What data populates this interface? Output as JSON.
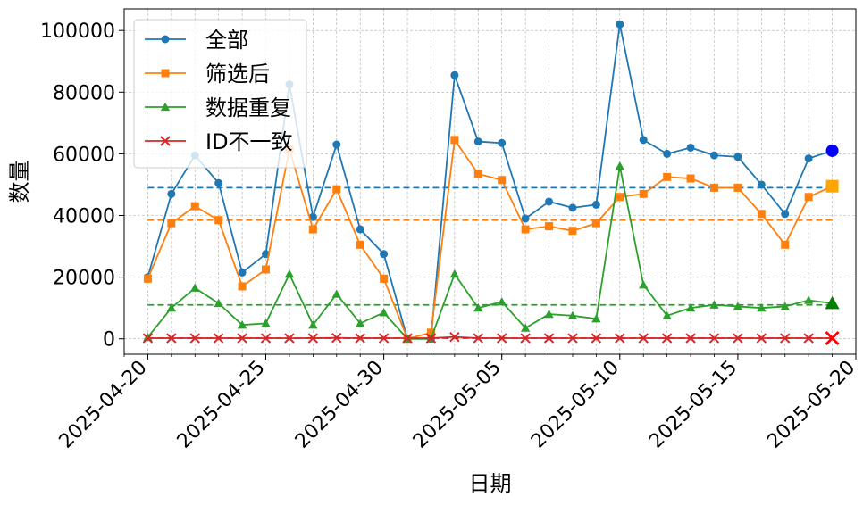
{
  "chart_data": {
    "type": "line",
    "title": "",
    "xlabel": "日期",
    "ylabel": "数量",
    "x_start": "2025-04-20",
    "x_end": "2025-05-19",
    "xlim": [
      "2025-04-19",
      "2025-05-20"
    ],
    "ylim": [
      -5000,
      107000
    ],
    "x_ticks": [
      "2025-04-20",
      "2025-04-25",
      "2025-04-30",
      "2025-05-05",
      "2025-05-10",
      "2025-05-15",
      "2025-05-20"
    ],
    "y_ticks": [
      0,
      20000,
      40000,
      60000,
      80000,
      100000
    ],
    "grid": true,
    "legend": "top-left",
    "series": [
      {
        "name": "全部",
        "color": "#1f77b4",
        "marker": "circle",
        "mean": 49000,
        "values": [
          20000,
          47000,
          59500,
          50500,
          21500,
          27500,
          82500,
          39500,
          63000,
          35500,
          27500,
          0,
          0,
          85500,
          64000,
          63500,
          39000,
          44500,
          42500,
          43500,
          102000,
          64500,
          60000,
          62000,
          59500,
          59000,
          50000,
          40500,
          58500,
          61000
        ]
      },
      {
        "name": "筛选后",
        "color": "#ff7f0e",
        "marker": "square",
        "mean": 38500,
        "values": [
          19500,
          37500,
          43000,
          38500,
          17000,
          22500,
          61500,
          35500,
          48500,
          30500,
          19500,
          0,
          2000,
          64500,
          53500,
          51500,
          35500,
          36500,
          35000,
          37500,
          46000,
          47000,
          52500,
          52000,
          49000,
          49000,
          40500,
          30500,
          46000,
          49500
        ]
      },
      {
        "name": "数据重复",
        "color": "#2ca02c",
        "marker": "triangle",
        "mean": 11000,
        "values": [
          500,
          10000,
          16500,
          11500,
          4500,
          5000,
          21000,
          4500,
          14500,
          5000,
          8500,
          0,
          0,
          21000,
          10000,
          12000,
          3500,
          8000,
          7500,
          6500,
          56000,
          17500,
          7500,
          10000,
          11000,
          10500,
          10000,
          10500,
          12500,
          11500
        ]
      },
      {
        "name": "ID不一致",
        "color": "#d62728",
        "marker": "x",
        "mean": 200,
        "values": [
          200,
          200,
          200,
          200,
          200,
          200,
          200,
          200,
          300,
          200,
          200,
          200,
          200,
          600,
          200,
          200,
          200,
          200,
          200,
          200,
          200,
          200,
          200,
          200,
          200,
          200,
          200,
          200,
          200,
          200
        ]
      }
    ],
    "highlight_markers": [
      {
        "series": "全部",
        "date": "2025-05-19",
        "value": 61000,
        "color": "#0000ff",
        "marker": "circle"
      },
      {
        "series": "筛选后",
        "date": "2025-05-19",
        "value": 49500,
        "color": "#ffa500",
        "marker": "square"
      },
      {
        "series": "数据重复",
        "date": "2025-05-19",
        "value": 11500,
        "color": "#008000",
        "marker": "triangle"
      },
      {
        "series": "ID不一致",
        "date": "2025-05-19",
        "value": 200,
        "color": "#ff0000",
        "marker": "x"
      }
    ]
  }
}
